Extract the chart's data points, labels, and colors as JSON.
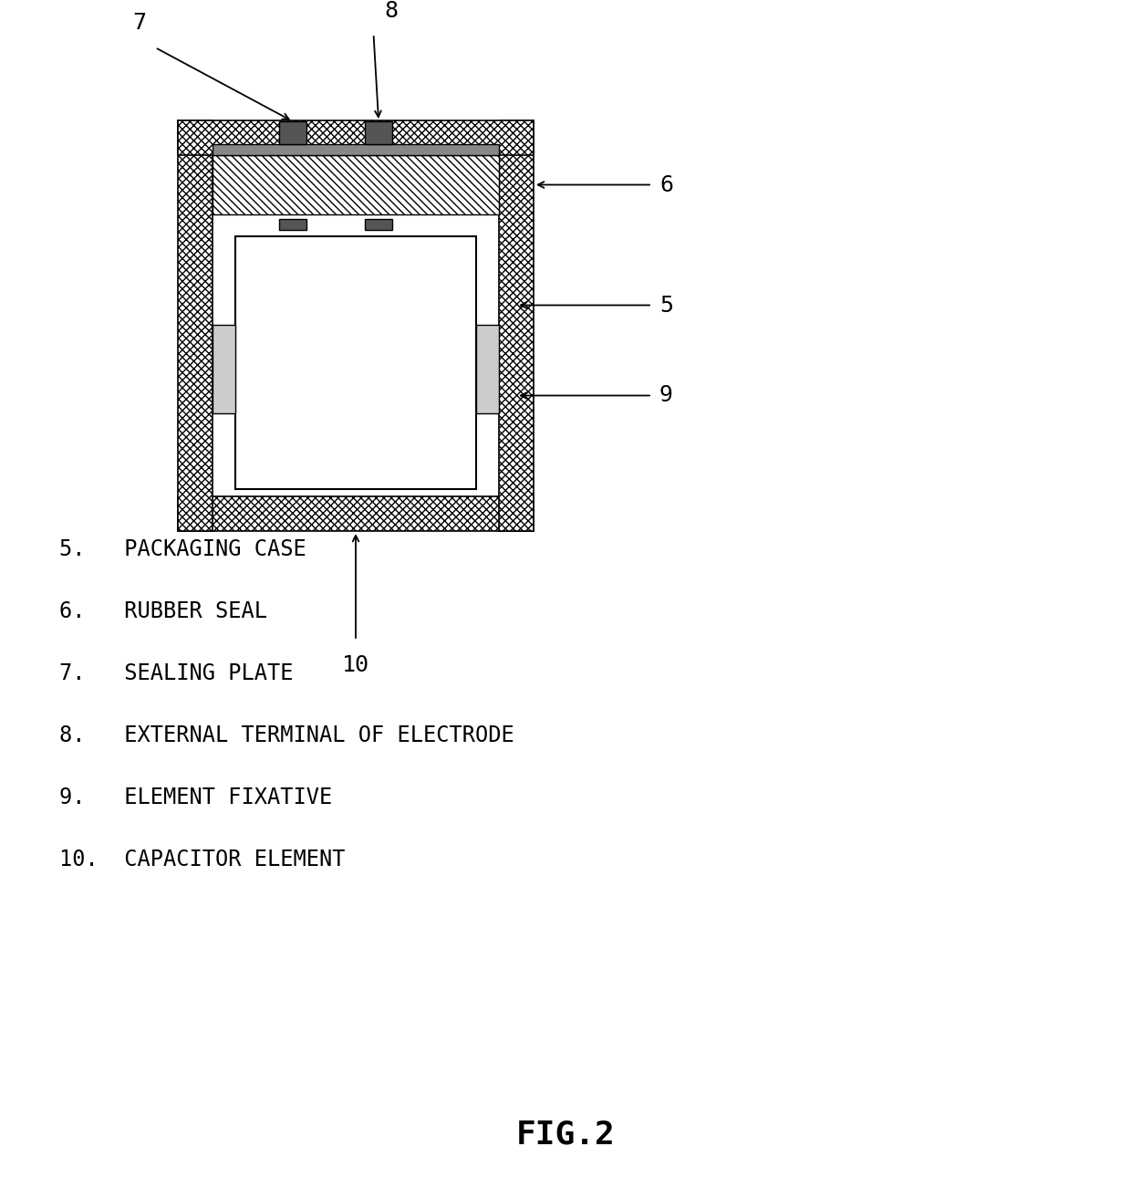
{
  "title": "FIG.2",
  "background_color": "#ffffff",
  "text_color": "#000000",
  "labels": [
    {
      "num": "5",
      "text": "PACKAGING CASE"
    },
    {
      "num": "6",
      "text": "RUBBER SEAL"
    },
    {
      "num": "7",
      "text": "SEALING PLATE"
    },
    {
      "num": "8",
      "text": "EXTERNAL TERMINAL OF ELECTRODE"
    },
    {
      "num": "9",
      "text": "ELEMENT FIXATIVE"
    },
    {
      "num": "10",
      "text": "CAPACITOR ELEMENT"
    }
  ],
  "fig_width": 12.4,
  "fig_height": 13.02,
  "dpi": 100
}
